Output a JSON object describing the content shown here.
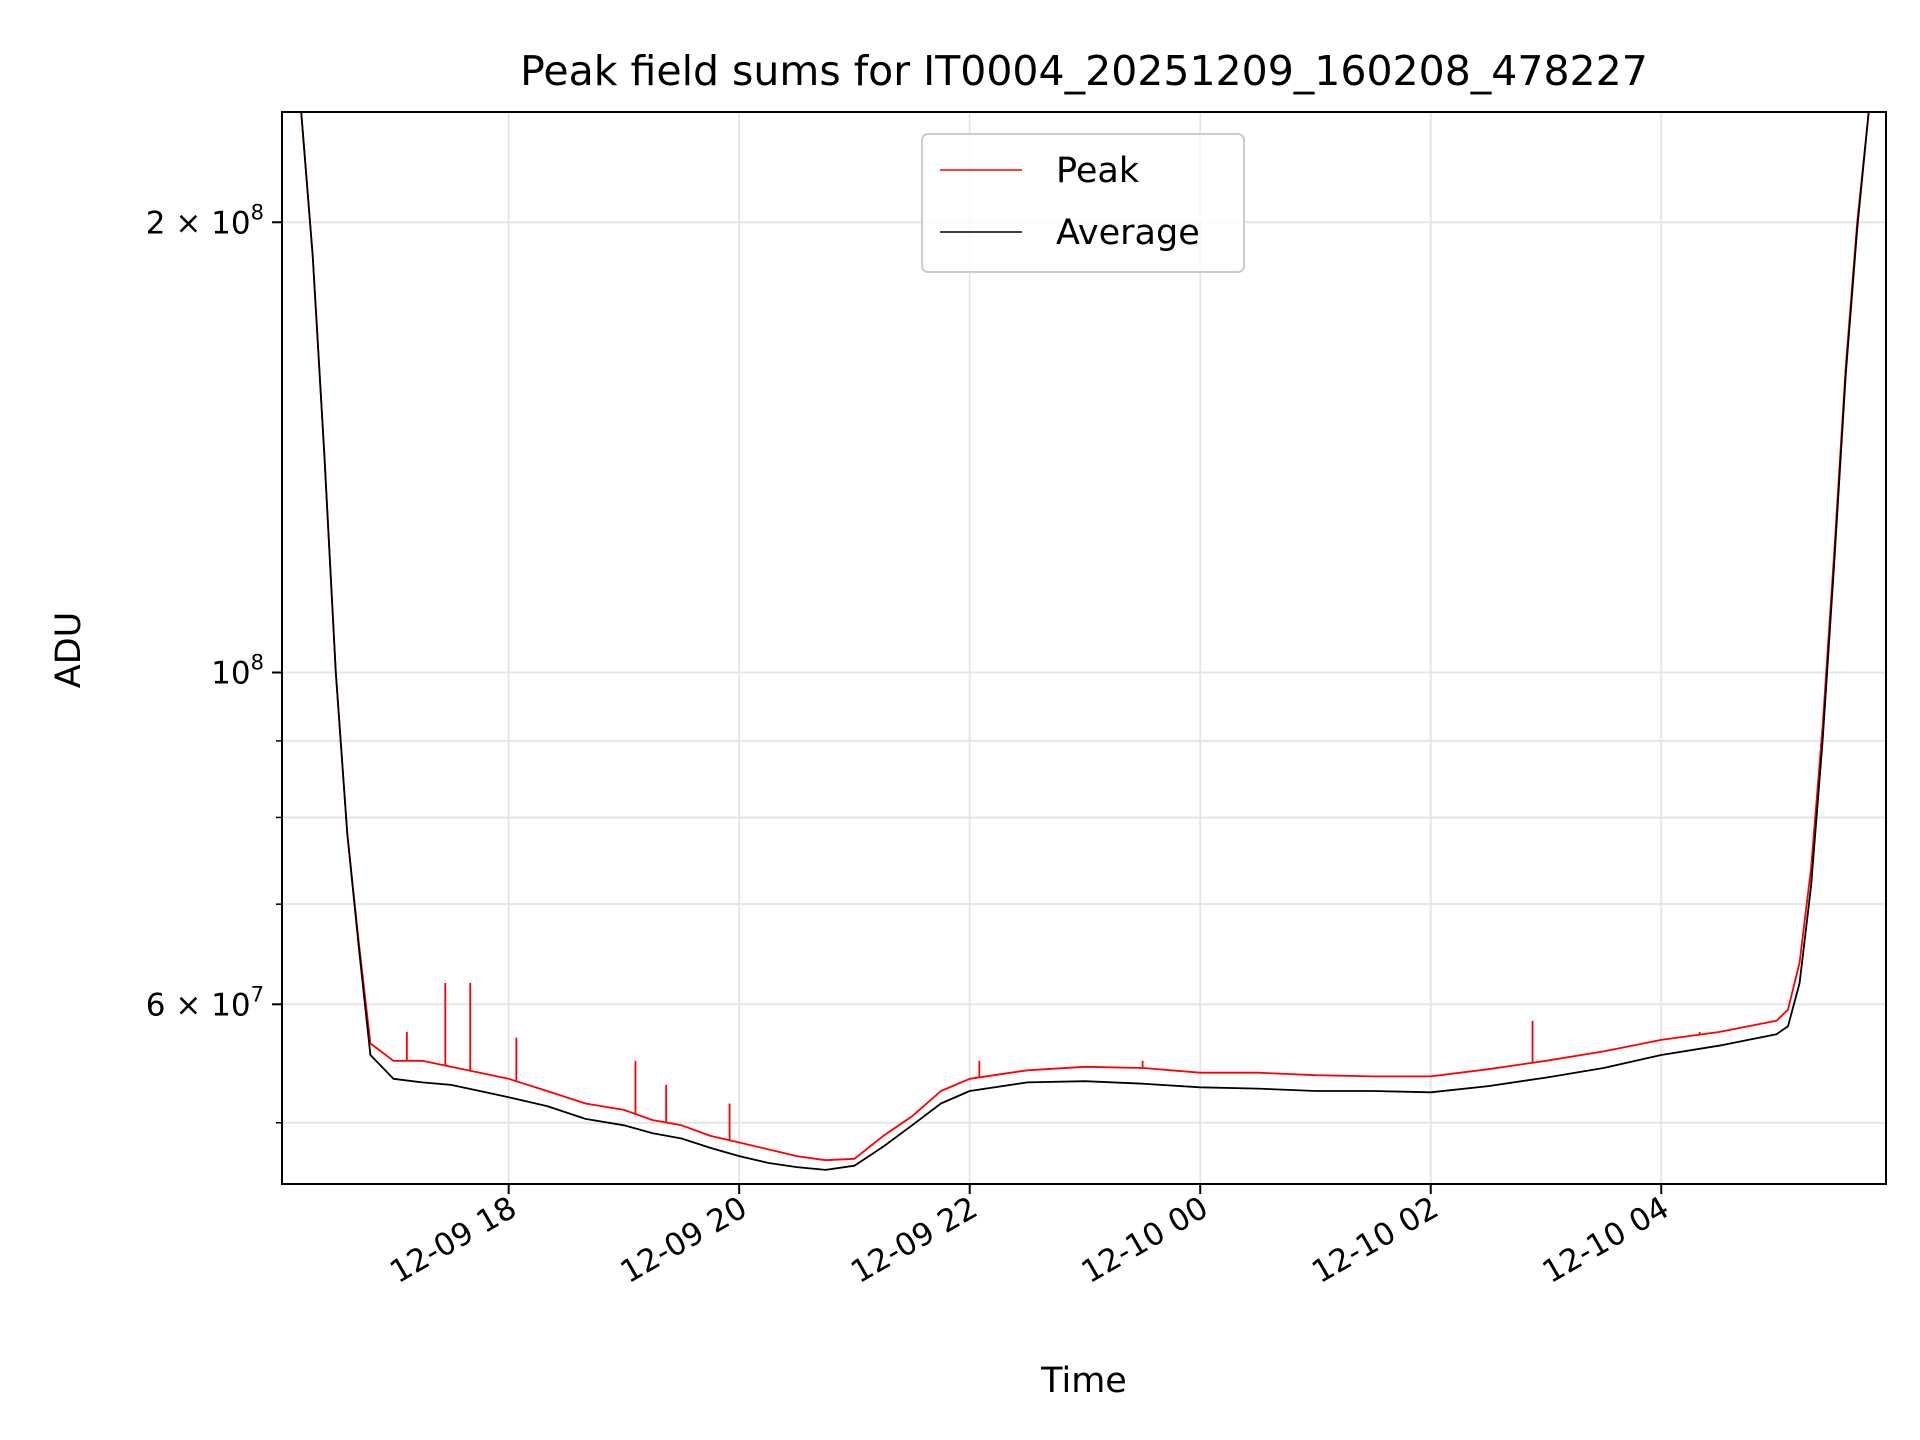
{
  "chart_data": {
    "type": "line",
    "title": "Peak field sums for IT0004_20251209_160208_478227",
    "xlabel": "Time",
    "ylabel": "ADU",
    "y_scale": "log",
    "grid": true,
    "legend_placement": "top-center",
    "colors": {
      "Peak": "#ff0000",
      "Average": "#000000"
    },
    "x_ticks": [
      "12-09 18",
      "12-09 20",
      "12-09 22",
      "12-10 00",
      "12-10 02",
      "12-10 04"
    ],
    "y_ticks": [
      {
        "base": "2",
        "mult": "×",
        "ten": "10",
        "exp": "8",
        "value": 200000000
      },
      {
        "base": "",
        "mult": "",
        "ten": "10",
        "exp": "8",
        "value": 100000000
      },
      {
        "base": "6",
        "mult": "×",
        "ten": "10",
        "exp": "7",
        "value": 60000000
      }
    ],
    "xlim": [
      "2025-12-09 16:02",
      "2025-12-10 05:57"
    ],
    "ylim": [
      45500000,
      237000000
    ],
    "series": [
      {
        "name": "Peak",
        "x": [
          "2025-12-09 16:12",
          "2025-12-09 16:18",
          "2025-12-09 16:24",
          "2025-12-09 16:30",
          "2025-12-09 16:36",
          "2025-12-09 16:42",
          "2025-12-09 16:48",
          "2025-12-09 17:00",
          "2025-12-09 17:15",
          "2025-12-09 17:30",
          "2025-12-09 17:45",
          "2025-12-09 18:00",
          "2025-12-09 18:20",
          "2025-12-09 18:40",
          "2025-12-09 19:00",
          "2025-12-09 19:15",
          "2025-12-09 19:30",
          "2025-12-09 19:45",
          "2025-12-09 20:00",
          "2025-12-09 20:15",
          "2025-12-09 20:30",
          "2025-12-09 20:45",
          "2025-12-09 21:00",
          "2025-12-09 21:15",
          "2025-12-09 21:30",
          "2025-12-09 21:45",
          "2025-12-09 22:00",
          "2025-12-09 22:30",
          "2025-12-09 23:00",
          "2025-12-09 23:30",
          "2025-12-10 00:00",
          "2025-12-10 00:30",
          "2025-12-10 01:00",
          "2025-12-10 01:30",
          "2025-12-10 02:00",
          "2025-12-10 02:30",
          "2025-12-10 03:00",
          "2025-12-10 03:30",
          "2025-12-10 04:00",
          "2025-12-10 04:30",
          "2025-12-10 05:00",
          "2025-12-10 05:06",
          "2025-12-10 05:12",
          "2025-12-10 05:18",
          "2025-12-10 05:24",
          "2025-12-10 05:30",
          "2025-12-10 05:36",
          "2025-12-10 05:42",
          "2025-12-10 05:48"
        ],
        "y": [
          237000000,
          190000000,
          140000000,
          100000000,
          78000000,
          66000000,
          56500000,
          55000000,
          55000000,
          54500000,
          54000000,
          53500000,
          52500000,
          51500000,
          51000000,
          50200000,
          49800000,
          49000000,
          48500000,
          48000000,
          47500000,
          47200000,
          47300000,
          49000000,
          50500000,
          52500000,
          53500000,
          54200000,
          54500000,
          54400000,
          54000000,
          54000000,
          53800000,
          53700000,
          53700000,
          54300000,
          55000000,
          55800000,
          56800000,
          57500000,
          58500000,
          59500000,
          64000000,
          74000000,
          92000000,
          120000000,
          160000000,
          200000000,
          237000000
        ],
        "spikes": [
          {
            "x": "2025-12-09 17:07",
            "y": 57500000
          },
          {
            "x": "2025-12-09 17:27",
            "y": 62000000
          },
          {
            "x": "2025-12-09 17:40",
            "y": 62000000
          },
          {
            "x": "2025-12-09 18:04",
            "y": 57000000
          },
          {
            "x": "2025-12-09 19:06",
            "y": 55000000
          },
          {
            "x": "2025-12-09 19:22",
            "y": 53000000
          },
          {
            "x": "2025-12-09 19:55",
            "y": 51500000
          },
          {
            "x": "2025-12-09 22:05",
            "y": 55000000
          },
          {
            "x": "2025-12-09 23:30",
            "y": 55000000
          },
          {
            "x": "2025-12-10 02:53",
            "y": 58500000
          },
          {
            "x": "2025-12-10 04:20",
            "y": 57500000
          }
        ]
      },
      {
        "name": "Average",
        "x": [
          "2025-12-09 16:12",
          "2025-12-09 16:18",
          "2025-12-09 16:24",
          "2025-12-09 16:30",
          "2025-12-09 16:36",
          "2025-12-09 16:42",
          "2025-12-09 16:48",
          "2025-12-09 17:00",
          "2025-12-09 17:15",
          "2025-12-09 17:30",
          "2025-12-09 17:45",
          "2025-12-09 18:00",
          "2025-12-09 18:20",
          "2025-12-09 18:40",
          "2025-12-09 19:00",
          "2025-12-09 19:15",
          "2025-12-09 19:30",
          "2025-12-09 19:45",
          "2025-12-09 20:00",
          "2025-12-09 20:15",
          "2025-12-09 20:30",
          "2025-12-09 20:45",
          "2025-12-09 21:00",
          "2025-12-09 21:15",
          "2025-12-09 21:30",
          "2025-12-09 21:45",
          "2025-12-09 22:00",
          "2025-12-09 22:30",
          "2025-12-09 23:00",
          "2025-12-09 23:30",
          "2025-12-10 00:00",
          "2025-12-10 00:30",
          "2025-12-10 01:00",
          "2025-12-10 01:30",
          "2025-12-10 02:00",
          "2025-12-10 02:30",
          "2025-12-10 03:00",
          "2025-12-10 03:30",
          "2025-12-10 04:00",
          "2025-12-10 04:30",
          "2025-12-10 05:00",
          "2025-12-10 05:06",
          "2025-12-10 05:12",
          "2025-12-10 05:18",
          "2025-12-10 05:24",
          "2025-12-10 05:30",
          "2025-12-10 05:36",
          "2025-12-10 05:42",
          "2025-12-10 05:48"
        ],
        "y": [
          237000000,
          190000000,
          140000000,
          100000000,
          78000000,
          65500000,
          55500000,
          53500000,
          53200000,
          53000000,
          52500000,
          52000000,
          51300000,
          50300000,
          49800000,
          49200000,
          48800000,
          48100000,
          47500000,
          47000000,
          46700000,
          46500000,
          46800000,
          48200000,
          49800000,
          51500000,
          52500000,
          53200000,
          53300000,
          53100000,
          52800000,
          52700000,
          52500000,
          52500000,
          52400000,
          52900000,
          53600000,
          54400000,
          55500000,
          56300000,
          57300000,
          58000000,
          62000000,
          72000000,
          90000000,
          118000000,
          158000000,
          198000000,
          237000000
        ]
      }
    ]
  }
}
